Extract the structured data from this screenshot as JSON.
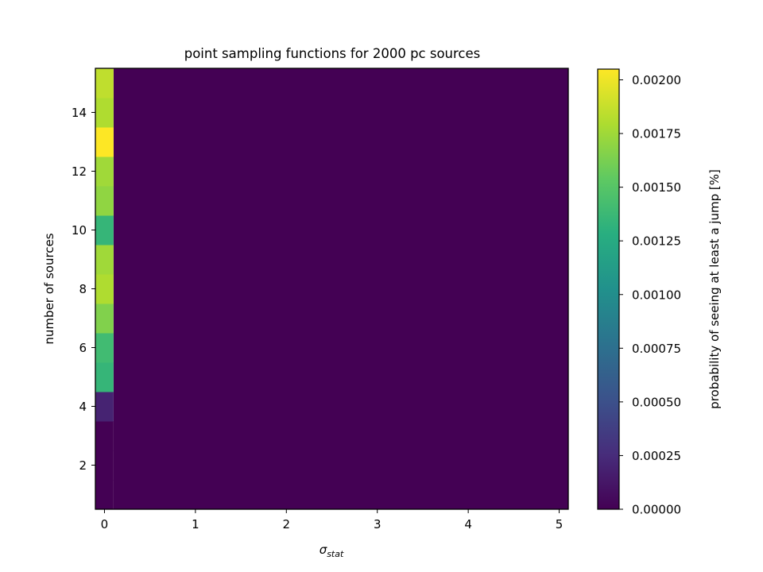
{
  "chart_data": {
    "type": "heatmap",
    "title": "point sampling functions for 2000 pc sources",
    "xlabel_main": "σ",
    "xlabel_sub": "stat",
    "ylabel": "number of sources",
    "colorbar_label": "probability of seeing at least a jump [%]",
    "colormap": "viridis",
    "x_edges": [
      -0.1,
      0.1
    ],
    "x_max": 5.1,
    "xlim": [
      -0.1,
      5.1
    ],
    "ylim": [
      0.5,
      15.5
    ],
    "x_ticks": [
      0,
      1,
      2,
      3,
      4,
      5
    ],
    "y_ticks": [
      2,
      4,
      6,
      8,
      10,
      12,
      14
    ],
    "colorbar_ticks": [
      "0.00000",
      "0.00025",
      "0.00050",
      "0.00075",
      "0.00100",
      "0.00125",
      "0.00150",
      "0.00175",
      "0.00200"
    ],
    "vmin": 0.0,
    "vmax": 0.00205,
    "y_rows": [
      1,
      2,
      3,
      4,
      5,
      6,
      7,
      8,
      9,
      10,
      11,
      12,
      13,
      14,
      15
    ],
    "first_column_values": [
      0.0,
      0.0,
      0.0,
      0.0002,
      0.00135,
      0.0014,
      0.00165,
      0.0018,
      0.00175,
      0.00135,
      0.0017,
      0.00175,
      0.00205,
      0.0018,
      0.00185
    ],
    "other_columns_value": 0.0
  }
}
